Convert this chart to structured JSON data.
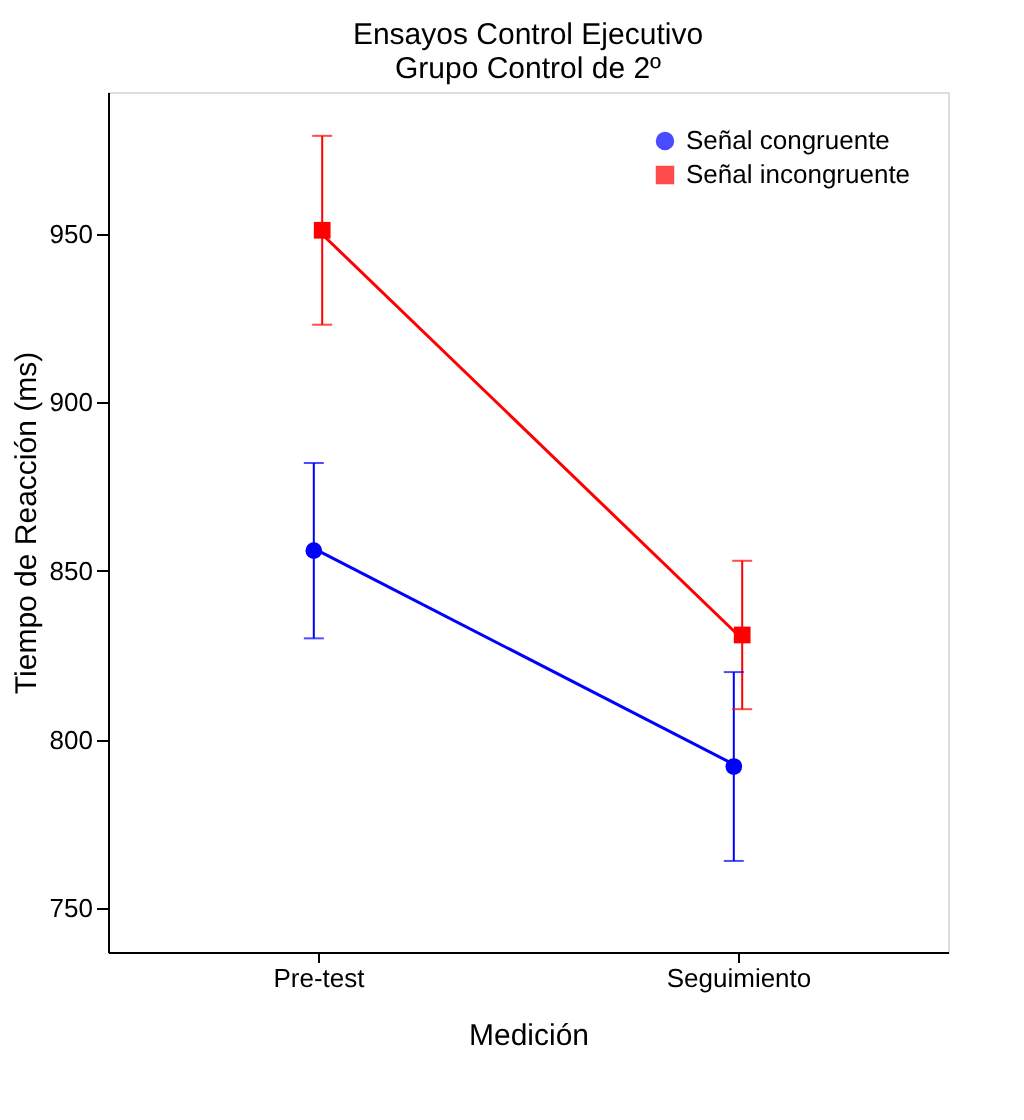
{
  "chart_data": {
    "type": "line",
    "title": [
      "Ensayos Control Ejecutivo",
      "Grupo Control de 2º"
    ],
    "xlabel": "Medición",
    "ylabel": "Tiempo de Reacción (ms)",
    "categories": [
      "Pre-test",
      "Seguimiento"
    ],
    "series": [
      {
        "name": "Señal congruente",
        "color": "#0000ff",
        "marker": "circle",
        "values": [
          856,
          792
        ],
        "errors": [
          [
            830,
            882
          ],
          [
            764,
            820
          ]
        ]
      },
      {
        "name": "Señal incongruente",
        "color": "#ff0000",
        "marker": "square",
        "values": [
          951,
          831
        ],
        "errors": [
          [
            923,
            979
          ],
          [
            809,
            853
          ]
        ]
      }
    ],
    "ylim": [
      737,
      992
    ],
    "yticks": [
      750,
      800,
      850,
      900,
      950
    ],
    "grid": false,
    "legend": "top right"
  }
}
